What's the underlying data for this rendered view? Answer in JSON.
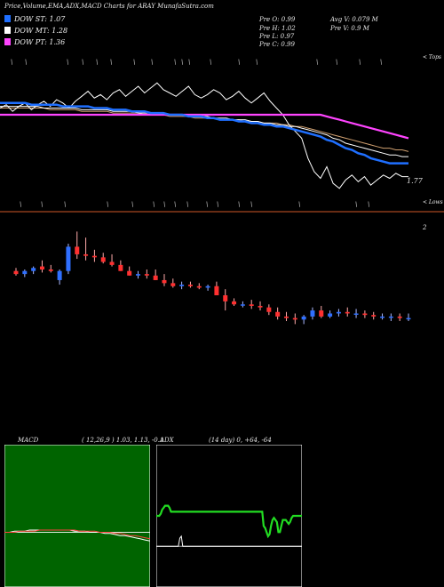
{
  "header": {
    "title": "Price,Volume,EMA,ADX,MACD Charts for ARAY MunafaSutra.com"
  },
  "dow_legend": [
    {
      "label": "DOW ST: 1.07",
      "color": "#1f6fff"
    },
    {
      "label": "DOW MT: 1.28",
      "color": "#ffffff"
    },
    {
      "label": "DOW PT: 1.36",
      "color": "#ff44ff"
    }
  ],
  "prev_info": {
    "o": "Pre   O: 0.99",
    "h": "Pre   H: 1.02",
    "l": "Pre   L: 0.97",
    "c": "Pre   C: 0.99",
    "avg_v": "Avg V: 0.079 M",
    "pre_v": "Pre   V: 0.9 M"
  },
  "price_panel": {
    "tops_label": "< Tops",
    "lows_label": "< Lows",
    "last_value": "1.77"
  },
  "candle_panel": {
    "level_label": "2"
  },
  "macd_panel": {
    "label": "MACD",
    "params": "( 12,26,9 ) 1.03,  1.13,  -0.1"
  },
  "adx_panel": {
    "label": "ADX",
    "params": "(14  day) 0,  +64,  -64"
  },
  "chart_data": [
    {
      "type": "line",
      "name": "price-ema",
      "series": [
        {
          "name": "DOW PT",
          "color": "#ff44ff",
          "values": [
            1.36,
            1.36,
            1.36,
            1.36,
            1.36,
            1.36,
            1.36,
            1.36,
            1.36,
            1.36,
            1.36,
            1.36,
            1.36,
            1.36,
            1.36,
            1.36,
            1.36,
            1.36,
            1.36,
            1.36,
            1.36,
            1.36,
            1.36,
            1.36,
            1.36,
            1.36,
            1.36,
            1.36,
            1.36,
            1.36,
            1.36,
            1.36,
            1.36,
            1.36,
            1.36,
            1.36,
            1.36,
            1.36,
            1.36,
            1.36,
            1.36,
            1.36,
            1.36,
            1.36,
            1.36,
            1.36,
            1.36,
            1.36,
            1.36,
            1.36,
            1.36,
            1.36,
            1.35,
            1.34,
            1.33,
            1.32,
            1.31,
            1.3,
            1.29,
            1.28,
            1.27,
            1.26,
            1.25,
            1.24,
            1.23,
            1.22
          ]
        },
        {
          "name": "EMA short",
          "color": "#1f6fff",
          "values": [
            1.43,
            1.43,
            1.43,
            1.43,
            1.43,
            1.42,
            1.42,
            1.42,
            1.42,
            1.42,
            1.41,
            1.41,
            1.41,
            1.41,
            1.41,
            1.4,
            1.4,
            1.4,
            1.39,
            1.39,
            1.39,
            1.38,
            1.38,
            1.38,
            1.37,
            1.37,
            1.37,
            1.36,
            1.36,
            1.36,
            1.35,
            1.35,
            1.35,
            1.34,
            1.34,
            1.33,
            1.33,
            1.33,
            1.32,
            1.32,
            1.31,
            1.31,
            1.3,
            1.3,
            1.29,
            1.29,
            1.28,
            1.27,
            1.26,
            1.25,
            1.24,
            1.23,
            1.21,
            1.2,
            1.18,
            1.16,
            1.15,
            1.13,
            1.12,
            1.1,
            1.09,
            1.08,
            1.07,
            1.07,
            1.07,
            1.07
          ]
        },
        {
          "name": "EMA long",
          "color": "#d0a070",
          "values": [
            1.4,
            1.4,
            1.4,
            1.4,
            1.4,
            1.4,
            1.4,
            1.4,
            1.39,
            1.39,
            1.39,
            1.39,
            1.39,
            1.38,
            1.38,
            1.38,
            1.38,
            1.38,
            1.37,
            1.37,
            1.37,
            1.37,
            1.37,
            1.36,
            1.36,
            1.36,
            1.36,
            1.35,
            1.35,
            1.35,
            1.35,
            1.34,
            1.34,
            1.34,
            1.34,
            1.33,
            1.33,
            1.33,
            1.33,
            1.32,
            1.32,
            1.32,
            1.31,
            1.31,
            1.31,
            1.3,
            1.3,
            1.29,
            1.29,
            1.28,
            1.27,
            1.26,
            1.25,
            1.24,
            1.23,
            1.22,
            1.21,
            1.2,
            1.19,
            1.18,
            1.17,
            1.16,
            1.16,
            1.15,
            1.15,
            1.14
          ]
        },
        {
          "name": "EMA mid",
          "color": "#ffffff",
          "values": [
            1.41,
            1.41,
            1.41,
            1.41,
            1.41,
            1.41,
            1.41,
            1.4,
            1.4,
            1.4,
            1.4,
            1.4,
            1.4,
            1.39,
            1.39,
            1.39,
            1.39,
            1.39,
            1.38,
            1.38,
            1.38,
            1.38,
            1.37,
            1.37,
            1.37,
            1.37,
            1.36,
            1.36,
            1.36,
            1.36,
            1.35,
            1.35,
            1.35,
            1.35,
            1.34,
            1.34,
            1.34,
            1.33,
            1.33,
            1.33,
            1.32,
            1.32,
            1.31,
            1.31,
            1.3,
            1.3,
            1.29,
            1.29,
            1.28,
            1.27,
            1.26,
            1.25,
            1.24,
            1.22,
            1.21,
            1.19,
            1.18,
            1.17,
            1.16,
            1.15,
            1.14,
            1.13,
            1.12,
            1.12,
            1.11,
            1.11
          ]
        },
        {
          "name": "Close",
          "color": "#ffffff",
          "values": [
            1.4,
            1.42,
            1.38,
            1.41,
            1.43,
            1.39,
            1.42,
            1.44,
            1.41,
            1.45,
            1.43,
            1.4,
            1.44,
            1.47,
            1.5,
            1.46,
            1.48,
            1.45,
            1.49,
            1.51,
            1.47,
            1.5,
            1.53,
            1.49,
            1.52,
            1.55,
            1.51,
            1.49,
            1.47,
            1.5,
            1.53,
            1.48,
            1.46,
            1.48,
            1.51,
            1.49,
            1.45,
            1.47,
            1.5,
            1.46,
            1.43,
            1.46,
            1.49,
            1.44,
            1.4,
            1.36,
            1.3,
            1.26,
            1.22,
            1.1,
            1.02,
            0.98,
            1.05,
            0.95,
            0.92,
            0.97,
            1.0,
            0.96,
            0.99,
            0.94,
            0.97,
            1.0,
            0.98,
            1.01,
            0.99,
            0.99
          ]
        }
      ],
      "ylim": [
        0.85,
        1.7
      ]
    },
    {
      "type": "bar",
      "name": "candles",
      "series": [
        {
          "name": "Open",
          "values": [
            1.3,
            1.28,
            1.3,
            1.33,
            1.31,
            1.24,
            1.3,
            1.46,
            1.41,
            1.4,
            1.39,
            1.36,
            1.34,
            1.3,
            1.27,
            1.28,
            1.27,
            1.24,
            1.22,
            1.2,
            1.21,
            1.2,
            1.19,
            1.2,
            1.14,
            1.1,
            1.08,
            1.08,
            1.07,
            1.06,
            1.03,
            1.0,
            0.99,
            0.98,
            1.0,
            1.04,
            1.0,
            1.02,
            1.03,
            1.02,
            1.02,
            1.01,
            1.0,
            1.0,
            1.0,
            0.99
          ]
        },
        {
          "name": "High",
          "values": [
            1.32,
            1.31,
            1.33,
            1.37,
            1.34,
            1.31,
            1.48,
            1.56,
            1.52,
            1.44,
            1.42,
            1.41,
            1.37,
            1.33,
            1.3,
            1.31,
            1.31,
            1.28,
            1.25,
            1.23,
            1.23,
            1.22,
            1.21,
            1.23,
            1.18,
            1.12,
            1.1,
            1.11,
            1.1,
            1.08,
            1.06,
            1.03,
            1.02,
            1.01,
            1.06,
            1.07,
            1.04,
            1.05,
            1.06,
            1.05,
            1.04,
            1.03,
            1.02,
            1.02,
            1.02,
            1.02
          ]
        },
        {
          "name": "Low",
          "values": [
            1.27,
            1.26,
            1.28,
            1.29,
            1.29,
            1.21,
            1.28,
            1.38,
            1.37,
            1.36,
            1.35,
            1.33,
            1.3,
            1.27,
            1.25,
            1.25,
            1.24,
            1.2,
            1.19,
            1.18,
            1.19,
            1.18,
            1.17,
            1.14,
            1.04,
            1.07,
            1.06,
            1.05,
            1.04,
            1.01,
            0.98,
            0.97,
            0.95,
            0.95,
            0.98,
            0.99,
            0.99,
            1.0,
            1.0,
            0.99,
            0.99,
            0.98,
            0.98,
            0.97,
            0.97,
            0.97
          ]
        },
        {
          "name": "Close",
          "values": [
            1.28,
            1.3,
            1.32,
            1.31,
            1.3,
            1.3,
            1.46,
            1.41,
            1.4,
            1.39,
            1.36,
            1.34,
            1.3,
            1.27,
            1.28,
            1.27,
            1.24,
            1.22,
            1.2,
            1.21,
            1.2,
            1.19,
            1.2,
            1.14,
            1.1,
            1.08,
            1.08,
            1.07,
            1.06,
            1.03,
            1.0,
            0.99,
            0.98,
            1.0,
            1.04,
            1.0,
            1.02,
            1.03,
            1.02,
            1.02,
            1.01,
            1.0,
            1.0,
            1.0,
            0.99,
            0.99
          ]
        }
      ],
      "ylim": [
        0.8,
        1.65
      ]
    },
    {
      "type": "line",
      "name": "macd",
      "series": [
        {
          "name": "MACD",
          "values": [
            0.0,
            0.0,
            0.01,
            0.01,
            0.01,
            0.02,
            0.02,
            0.02,
            0.02,
            0.02,
            0.02,
            0.02,
            0.02,
            0.02,
            0.01,
            0.01,
            0.01,
            0.0,
            0.0,
            0.0,
            -0.01,
            -0.01,
            -0.02,
            -0.03,
            -0.03,
            -0.04,
            -0.05,
            -0.06,
            -0.07,
            -0.08
          ]
        },
        {
          "name": "Signal",
          "values": [
            0.0,
            0.0,
            0.0,
            0.01,
            0.01,
            0.01,
            0.01,
            0.02,
            0.02,
            0.02,
            0.02,
            0.02,
            0.02,
            0.02,
            0.02,
            0.01,
            0.01,
            0.01,
            0.01,
            0.0,
            0.0,
            0.0,
            -0.01,
            -0.01,
            -0.02,
            -0.03,
            -0.03,
            -0.04,
            -0.05,
            -0.06
          ]
        }
      ],
      "ylim": [
        -0.5,
        0.8
      ]
    },
    {
      "type": "line",
      "name": "adx",
      "series": [
        {
          "name": "ADX",
          "color": "#ffffff",
          "values": [
            0,
            0,
            0,
            0,
            0,
            0,
            0,
            0,
            0,
            0,
            0,
            0,
            0,
            0,
            0,
            0,
            8,
            10,
            0,
            0,
            0,
            0,
            0,
            0,
            0,
            0,
            0,
            0,
            0,
            0,
            0,
            0,
            0,
            0,
            0,
            0,
            0,
            0,
            0,
            0,
            0,
            0,
            0,
            0,
            0,
            0,
            0,
            0,
            0,
            0,
            0,
            0,
            0,
            0,
            0,
            0,
            0,
            0,
            0,
            0,
            0,
            0,
            0,
            0,
            0,
            0,
            0,
            0,
            0,
            0,
            0,
            0,
            0,
            0,
            0,
            0,
            0,
            0,
            0,
            0,
            0,
            0,
            0,
            0,
            0,
            0,
            0,
            0,
            0,
            0,
            0,
            0,
            0,
            0,
            0,
            0,
            0,
            0,
            0,
            0
          ]
        },
        {
          "name": "+DI",
          "color": "#22dd22",
          "values": [
            30,
            30,
            30,
            32,
            36,
            38,
            40,
            40,
            40,
            38,
            34,
            34,
            34,
            34,
            34,
            34,
            34,
            34,
            34,
            34,
            34,
            34,
            34,
            34,
            34,
            34,
            34,
            34,
            34,
            34,
            34,
            34,
            34,
            34,
            34,
            34,
            34,
            34,
            34,
            34,
            34,
            34,
            34,
            34,
            34,
            34,
            34,
            34,
            34,
            34,
            34,
            34,
            34,
            34,
            34,
            34,
            34,
            34,
            34,
            34,
            34,
            34,
            34,
            34,
            34,
            34,
            34,
            34,
            34,
            34,
            34,
            34,
            34,
            20,
            18,
            14,
            10,
            12,
            20,
            26,
            28,
            26,
            24,
            14,
            14,
            20,
            26,
            26,
            26,
            24,
            22,
            24,
            28,
            30,
            30,
            30,
            30,
            30,
            30,
            30
          ]
        }
      ],
      "ylim": [
        -40,
        100
      ]
    }
  ]
}
